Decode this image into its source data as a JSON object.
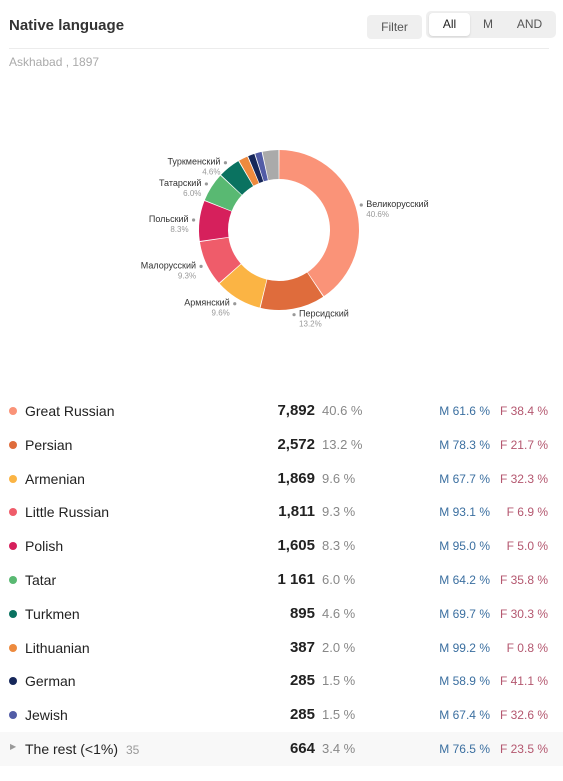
{
  "header": {
    "title": "Native language",
    "filter_label": "Filter",
    "segments": [
      "All",
      "M",
      "AND"
    ],
    "active_segment": "All"
  },
  "subtitle": "Askhabad , 1897",
  "chart_data": {
    "type": "pie",
    "donut": true,
    "slices": [
      {
        "label": "Великорусский",
        "value": 40.6,
        "color": "#fa9378"
      },
      {
        "label": "Персидский",
        "value": 13.2,
        "color": "#df6c3c"
      },
      {
        "label": "Армянский",
        "value": 9.6,
        "color": "#fbb444"
      },
      {
        "label": "Малорусский",
        "value": 9.3,
        "color": "#ef5c6a"
      },
      {
        "label": "Польский",
        "value": 8.3,
        "color": "#d6205c"
      },
      {
        "label": "Татарский",
        "value": 6.0,
        "color": "#59b972"
      },
      {
        "label": "Туркменский",
        "value": 4.6,
        "color": "#0a7260"
      },
      {
        "label": "",
        "value": 2.0,
        "color": "#ed8a3e"
      },
      {
        "label": "",
        "value": 1.5,
        "color": "#16275a"
      },
      {
        "label": "",
        "value": 1.5,
        "color": "#525ca6"
      },
      {
        "label": "",
        "value": 3.4,
        "color": "#aaaaaa"
      }
    ]
  },
  "table": {
    "rows": [
      {
        "name": "Great Russian",
        "count": "7,892",
        "pct": "40.6 %",
        "m": "M 61.6 %",
        "f": "F 38.4 %",
        "color": "#fa9378"
      },
      {
        "name": "Persian",
        "count": "2,572",
        "pct": "13.2 %",
        "m": "M 78.3 %",
        "f": "F 21.7 %",
        "color": "#df6c3c"
      },
      {
        "name": "Armenian",
        "count": "1,869",
        "pct": "9.6 %",
        "m": "M 67.7 %",
        "f": "F 32.3 %",
        "color": "#fbb444"
      },
      {
        "name": "Little Russian",
        "count": "1,811",
        "pct": "9.3 %",
        "m": "M 93.1 %",
        "f": "F 6.9 %",
        "color": "#ef5c6a"
      },
      {
        "name": "Polish",
        "count": "1,605",
        "pct": "8.3 %",
        "m": "M 95.0 %",
        "f": "F 5.0 %",
        "color": "#d6205c"
      },
      {
        "name": "Tatar",
        "count": "1 161",
        "pct": "6.0 %",
        "m": "M 64.2 %",
        "f": "F 35.8 %",
        "color": "#59b972"
      },
      {
        "name": "Turkmen",
        "count": "895",
        "pct": "4.6 %",
        "m": "M 69.7 %",
        "f": "F 30.3 %",
        "color": "#0a7260"
      },
      {
        "name": "Lithuanian",
        "count": "387",
        "pct": "2.0 %",
        "m": "M 99.2 %",
        "f": "F 0.8 %",
        "color": "#ed8a3e"
      },
      {
        "name": "German",
        "count": "285",
        "pct": "1.5 %",
        "m": "M 58.9 %",
        "f": "F 41.1 %",
        "color": "#16275a"
      },
      {
        "name": "Jewish",
        "count": "285",
        "pct": "1.5 %",
        "m": "M 67.4 %",
        "f": "F 32.6 %",
        "color": "#525ca6"
      }
    ],
    "rest": {
      "name": "The rest (<1%)",
      "extra": "35",
      "count": "664",
      "pct": "3.4 %",
      "m": "M 76.5 %",
      "f": "F 23.5 %",
      "icon": "triangle-right-icon"
    }
  }
}
